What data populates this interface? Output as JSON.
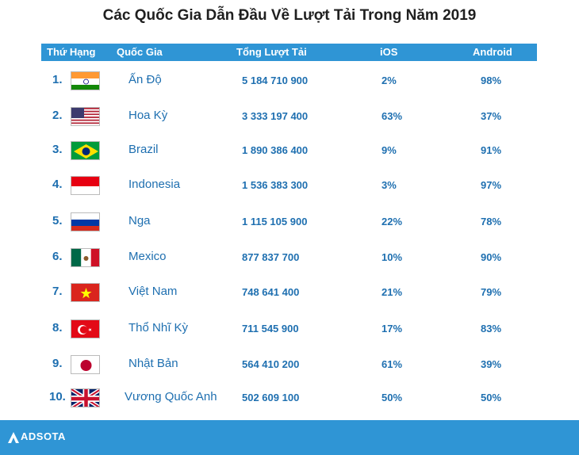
{
  "title": "Các Quốc Gia Dẫn Đầu Về Lượt Tải Trong Năm 2019",
  "headers": {
    "rank": "Thứ Hạng",
    "country": "Quốc Gia",
    "total": "Tổng Lượt Tải",
    "ios": "iOS",
    "android": "Android"
  },
  "colors": {
    "accent": "#2f95d5",
    "text": "#1e6fb0"
  },
  "chart_data": {
    "type": "table",
    "title": "Các Quốc Gia Dẫn Đầu Về Lượt Tải Trong Năm 2019",
    "columns": [
      "Thứ Hạng",
      "Quốc Gia",
      "Tổng Lượt Tải",
      "iOS",
      "Android"
    ],
    "rows": [
      {
        "rank": "1.",
        "country": "Ấn Độ",
        "flag": "india-flag",
        "total": "5 184 710 900",
        "ios": "2%",
        "android": "98%"
      },
      {
        "rank": "2.",
        "country": "Hoa Kỳ",
        "flag": "usa-flag",
        "total": "3 333 197 400",
        "ios": "63%",
        "android": "37%"
      },
      {
        "rank": "3.",
        "country": "Brazil",
        "flag": "brazil-flag",
        "total": "1 890 386 400",
        "ios": "9%",
        "android": "91%"
      },
      {
        "rank": "4.",
        "country": "Indonesia",
        "flag": "indonesia-flag",
        "total": "1 536 383 300",
        "ios": "3%",
        "android": "97%"
      },
      {
        "rank": "5.",
        "country": "Nga",
        "flag": "russia-flag",
        "total": "1 115 105 900",
        "ios": "22%",
        "android": "78%"
      },
      {
        "rank": "6.",
        "country": "Mexico",
        "flag": "mexico-flag",
        "total": "877 837 700",
        "ios": "10%",
        "android": "90%"
      },
      {
        "rank": "7.",
        "country": "Việt Nam",
        "flag": "vietnam-flag",
        "total": "748 641 400",
        "ios": "21%",
        "android": "79%"
      },
      {
        "rank": "8.",
        "country": "Thổ Nhĩ Kỳ",
        "flag": "turkey-flag",
        "total": "711 545 900",
        "ios": "17%",
        "android": "83%"
      },
      {
        "rank": "9.",
        "country": "Nhật Bản",
        "flag": "japan-flag",
        "total": "564 410 200",
        "ios": "61%",
        "android": "39%"
      },
      {
        "rank": "10.",
        "country": "Vương Quốc Anh",
        "flag": "uk-flag",
        "total": "502 609 100",
        "ios": "50%",
        "android": "50%"
      }
    ]
  },
  "footer": {
    "brand": "ADSOTA"
  }
}
